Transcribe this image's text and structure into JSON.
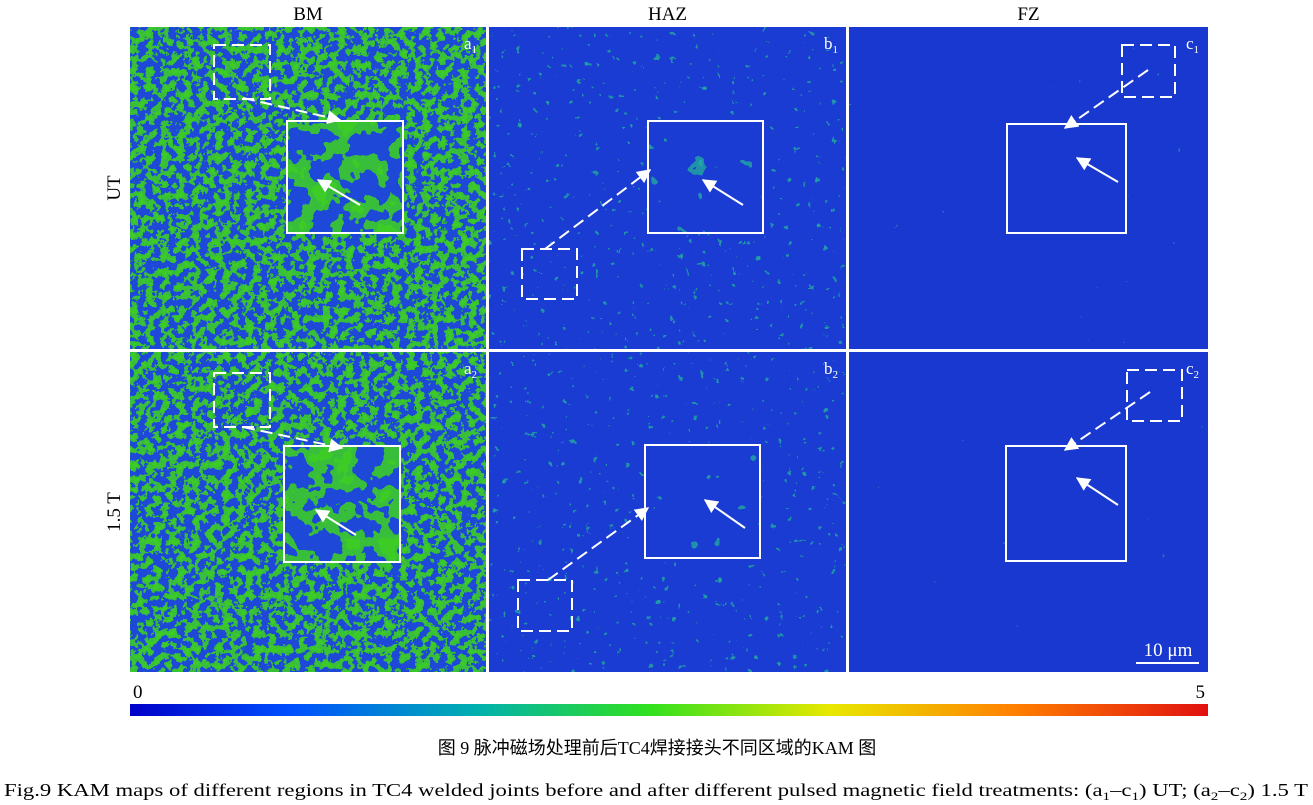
{
  "columns": [
    "BM",
    "HAZ",
    "FZ"
  ],
  "rows": [
    "UT",
    "1.5 T"
  ],
  "panels": [
    [
      {
        "letter": "a",
        "sub": "1"
      },
      {
        "letter": "b",
        "sub": "1"
      },
      {
        "letter": "c",
        "sub": "1"
      }
    ],
    [
      {
        "letter": "a",
        "sub": "2"
      },
      {
        "letter": "b",
        "sub": "2"
      },
      {
        "letter": "c",
        "sub": "2"
      }
    ]
  ],
  "scale_bar": "10 μm",
  "colorbar": {
    "min": 0,
    "max": 5
  },
  "caption_cn": "图 9  脉冲磁场处理前后TC4焊接接头不同区域的KAM 图",
  "caption_en": [
    "Fig.9  KAM maps of different regions in TC4 welded joints before and after different pulsed magnetic field treatments: (a",
    "1",
    "–c",
    "1",
    ") UT; (a",
    "2",
    "–c",
    "2",
    ") 1.5 T"
  ]
}
